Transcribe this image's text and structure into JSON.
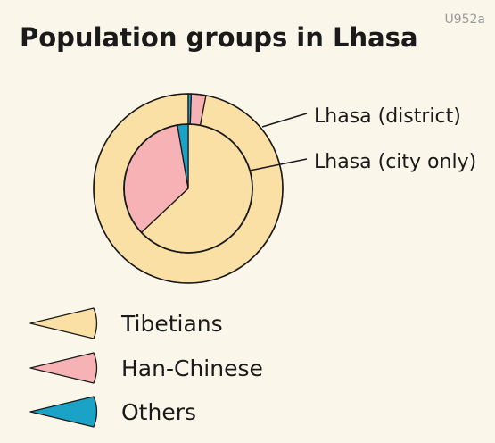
{
  "header": {
    "code": "U952a",
    "title": "Population groups in Lhasa"
  },
  "colors": {
    "background": "#faf7ea",
    "stroke": "#1a1a1a",
    "series": [
      "#fbe0a6",
      "#f6b2b4",
      "#1aa3c6"
    ]
  },
  "chart_data": {
    "type": "pie",
    "title": "Population groups in Lhasa",
    "categories": [
      "Tibetians",
      "Han-Chinese",
      "Others"
    ],
    "series": [
      {
        "name": "Lhasa (district)",
        "ring": "outer",
        "values": [
          97.0,
          2.5,
          0.5
        ]
      },
      {
        "name": "Lhasa (city only)",
        "ring": "inner",
        "values": [
          63.0,
          34.3,
          2.7
        ]
      }
    ],
    "legend_position": "bottom-left"
  }
}
